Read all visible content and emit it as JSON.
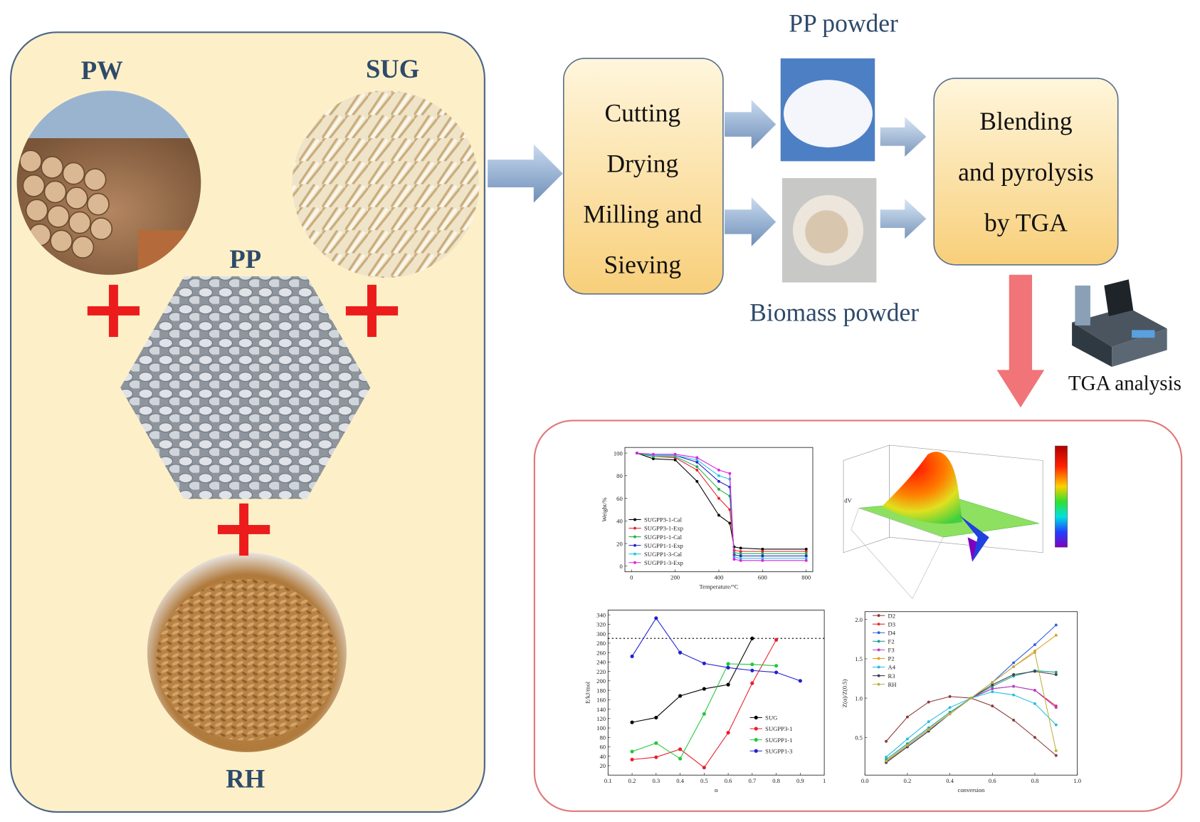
{
  "labels": {
    "pw": "PW",
    "sug": "SUG",
    "pp": "PP",
    "rh": "RH"
  },
  "process": {
    "lines": [
      "Cutting",
      "Drying",
      "Milling and",
      "Sieving"
    ]
  },
  "pp_powder": "PP powder",
  "biomass_powder": "Biomass powder",
  "blending": {
    "lines": [
      "Blending",
      "and pyrolysis",
      "by TGA"
    ]
  },
  "tga_label": "TGA analysis",
  "results": {
    "weight_chart": {
      "type": "line",
      "xlabel": "Temperature/°C",
      "ylabel": "Weight/%",
      "x": [
        25,
        100,
        200,
        300,
        400,
        450,
        470,
        500,
        600,
        800
      ],
      "xlim": [
        -30,
        830
      ],
      "ylim": [
        -5,
        105
      ],
      "xticks": [
        0,
        200,
        400,
        600,
        800
      ],
      "yticks": [
        0,
        20,
        40,
        60,
        80,
        100
      ],
      "series": [
        {
          "name": "SUGPP3-1-Cal",
          "color": "#000000",
          "values": [
            100,
            95,
            94,
            75,
            45,
            38,
            17,
            16,
            15,
            15
          ]
        },
        {
          "name": "SUGPP3-1-Exp",
          "color": "#e8202a",
          "values": [
            100,
            97,
            96,
            85,
            60,
            50,
            14,
            13,
            13,
            13
          ]
        },
        {
          "name": "SUGPP1-1-Cal",
          "color": "#22b14c",
          "values": [
            100,
            97,
            97,
            88,
            68,
            62,
            12,
            11,
            11,
            11
          ]
        },
        {
          "name": "SUGPP1-1-Exp",
          "color": "#2020c8",
          "values": [
            100,
            98,
            98,
            92,
            75,
            70,
            10,
            9,
            9,
            9
          ]
        },
        {
          "name": "SUGPP1-3-Cal",
          "color": "#22c8e0",
          "values": [
            100,
            98,
            98,
            94,
            80,
            77,
            8,
            7,
            7,
            7
          ]
        },
        {
          "name": "SUGPP1-3-Exp",
          "color": "#e020e0",
          "values": [
            100,
            99,
            99,
            96,
            85,
            82,
            6,
            5,
            5,
            5
          ]
        }
      ]
    },
    "surface_chart": {
      "ylabel": "dV"
    },
    "energy_chart": {
      "type": "line",
      "xlabel": "α",
      "ylabel": "E/kJ/mol",
      "xlim": [
        0.1,
        1.0
      ],
      "ylim": [
        0,
        350
      ],
      "xticks": [
        0.1,
        0.2,
        0.3,
        0.4,
        0.5,
        0.6,
        0.7,
        0.8,
        0.9,
        1.0
      ],
      "yticks": [
        20,
        40,
        60,
        80,
        100,
        120,
        140,
        160,
        180,
        200,
        220,
        240,
        260,
        280,
        300,
        320,
        340
      ],
      "reference_line": 290,
      "series": [
        {
          "name": "SUG",
          "color": "#000000",
          "x": [
            0.2,
            0.3,
            0.4,
            0.5,
            0.6,
            0.7
          ],
          "values": [
            112,
            122,
            168,
            183,
            192,
            290
          ]
        },
        {
          "name": "SUGPP3-1",
          "color": "#e8202a",
          "x": [
            0.2,
            0.3,
            0.4,
            0.5,
            0.6,
            0.7,
            0.8
          ],
          "values": [
            33,
            38,
            55,
            16,
            90,
            195,
            287
          ]
        },
        {
          "name": "SUGPP1-1",
          "color": "#22c83c",
          "x": [
            0.2,
            0.3,
            0.4,
            0.5,
            0.6,
            0.7,
            0.8
          ],
          "values": [
            50,
            68,
            35,
            130,
            236,
            235,
            232
          ]
        },
        {
          "name": "SUGPP1-3",
          "color": "#2020d0",
          "x": [
            0.2,
            0.3,
            0.4,
            0.5,
            0.6,
            0.7,
            0.8,
            0.9
          ],
          "values": [
            252,
            333,
            260,
            237,
            228,
            222,
            218,
            200
          ]
        }
      ]
    },
    "ratio_chart": {
      "type": "line",
      "xlabel": "conversion",
      "ylabel": "Z(α)/Z(0.5)",
      "x": [
        0.1,
        0.2,
        0.3,
        0.4,
        0.5,
        0.6,
        0.7,
        0.8,
        0.9
      ],
      "xlim": [
        0,
        1.0
      ],
      "ylim": [
        0.02,
        2.1
      ],
      "xticks": [
        {
          "value": 0,
          "label": "0.0"
        },
        0.2,
        0.4,
        0.6,
        0.8,
        {
          "value": 1,
          "label": "1.0"
        }
      ],
      "yticks": [
        {
          "value": 0.5,
          "label": "0.5"
        },
        {
          "value": 1,
          "label": "1.0"
        },
        1.5,
        {
          "value": 2,
          "label": "2.0"
        }
      ],
      "series": [
        {
          "name": "D2",
          "color": "#8b3a3a",
          "values": [
            0.45,
            0.76,
            0.95,
            1.02,
            1.0,
            0.9,
            0.72,
            0.5,
            0.27
          ]
        },
        {
          "name": "D3",
          "color": "#e03030",
          "values": [
            0.2,
            0.4,
            0.6,
            0.8,
            1.0,
            1.12,
            1.15,
            1.1,
            0.9
          ]
        },
        {
          "name": "D4",
          "color": "#3060e0",
          "values": [
            0.18,
            0.38,
            0.58,
            0.8,
            1.0,
            1.2,
            1.45,
            1.68,
            1.93
          ]
        },
        {
          "name": "F2",
          "color": "#20a090",
          "values": [
            0.22,
            0.42,
            0.62,
            0.82,
            1.0,
            1.15,
            1.28,
            1.35,
            1.33
          ]
        },
        {
          "name": "F3",
          "color": "#b040d0",
          "values": [
            0.2,
            0.4,
            0.6,
            0.8,
            1.0,
            1.12,
            1.15,
            1.1,
            0.88
          ]
        },
        {
          "name": "P2",
          "color": "#e0a020",
          "values": [
            0.19,
            0.4,
            0.6,
            0.8,
            1.0,
            1.2,
            1.4,
            1.6,
            1.8
          ]
        },
        {
          "name": "A4",
          "color": "#20c0e0",
          "values": [
            0.25,
            0.48,
            0.7,
            0.88,
            1.0,
            1.08,
            1.04,
            0.93,
            0.66
          ]
        },
        {
          "name": "R3",
          "color": "#404050",
          "values": [
            0.18,
            0.38,
            0.58,
            0.8,
            1.0,
            1.17,
            1.3,
            1.34,
            1.3
          ]
        },
        {
          "name": "RH",
          "color": "#c0b040",
          "values": [
            0.2,
            0.4,
            0.6,
            0.8,
            1.0,
            1.2,
            1.4,
            1.58,
            0.33
          ]
        }
      ]
    }
  }
}
